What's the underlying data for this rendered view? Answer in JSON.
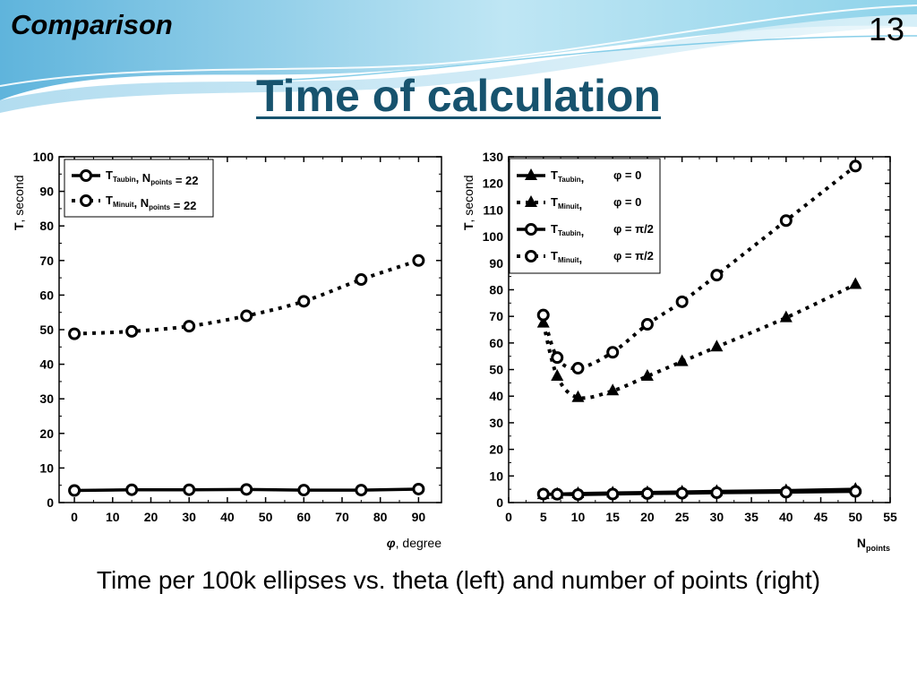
{
  "slide": {
    "section": "Comparison",
    "page_number": "13",
    "title": "Time of calculation",
    "caption": "Time per 100k ellipses vs. theta (left) and number of points (right)"
  },
  "chart_data": [
    {
      "type": "line",
      "ylabel": {
        "main": "T",
        "rest": ", second"
      },
      "xlabel": {
        "main": "φ",
        "rest": ", degree"
      },
      "xlim": [
        -4,
        96
      ],
      "ylim": [
        0,
        100
      ],
      "xticks": [
        0,
        10,
        20,
        30,
        40,
        50,
        60,
        70,
        80,
        90
      ],
      "yticks": [
        0,
        10,
        20,
        30,
        40,
        50,
        60,
        70,
        80,
        90,
        100
      ],
      "legend_position": "top-left",
      "series": [
        {
          "legend": [
            {
              "t": "T",
              "sub": "Taubin"
            },
            {
              "t": ", N"
            },
            {
              "t": "points",
              "sub_only": true
            },
            {
              "t": " = 22"
            }
          ],
          "marker": "circle",
          "line": "solid",
          "x": [
            0,
            15,
            30,
            45,
            60,
            75,
            90
          ],
          "y": [
            3.5,
            3.7,
            3.7,
            3.8,
            3.6,
            3.6,
            3.9
          ]
        },
        {
          "legend": [
            {
              "t": "T",
              "sub": "Minuit"
            },
            {
              "t": ", N"
            },
            {
              "t": "points",
              "sub_only": true
            },
            {
              "t": " = 22"
            }
          ],
          "marker": "circle",
          "line": "dotted",
          "x": [
            0,
            15,
            30,
            45,
            60,
            75,
            90
          ],
          "y": [
            48.8,
            49.5,
            51,
            54,
            58.2,
            64.5,
            70
          ]
        }
      ]
    },
    {
      "type": "line",
      "ylabel": {
        "main": "T",
        "rest": ", second"
      },
      "xlabel": {
        "main": "N",
        "sub": "points"
      },
      "xlim": [
        0,
        55
      ],
      "ylim": [
        0,
        130
      ],
      "xticks": [
        0,
        5,
        10,
        15,
        20,
        25,
        30,
        35,
        40,
        45,
        50,
        55
      ],
      "yticks": [
        0,
        10,
        20,
        30,
        40,
        50,
        60,
        70,
        80,
        90,
        100,
        110,
        120,
        130
      ],
      "legend_position": "top-left",
      "series": [
        {
          "legend": [
            {
              "t": "T",
              "sub": "Taubin"
            },
            {
              "t": ","
            }
          ],
          "phi": "φ = 0",
          "marker": "triangle",
          "line": "solid",
          "x": [
            5,
            7,
            10,
            15,
            20,
            25,
            30,
            40,
            50
          ],
          "y": [
            3,
            3.2,
            3.4,
            3.6,
            3.8,
            4,
            4.2,
            4.5,
            5
          ]
        },
        {
          "legend": [
            {
              "t": "T",
              "sub": "Minuit"
            },
            {
              "t": ","
            }
          ],
          "phi": "φ = 0",
          "marker": "triangle",
          "line": "dotted",
          "x": [
            5,
            7,
            10,
            15,
            20,
            25,
            30,
            40,
            50
          ],
          "y": [
            67.5,
            47.5,
            39.5,
            42,
            47.5,
            53,
            58.5,
            69.5,
            82
          ]
        },
        {
          "legend": [
            {
              "t": "T",
              "sub": "Taubin"
            },
            {
              "t": ","
            }
          ],
          "phi": "φ = π/2",
          "marker": "circle",
          "line": "solid",
          "x": [
            5,
            7,
            10,
            15,
            20,
            25,
            30,
            40,
            50
          ],
          "y": [
            3.2,
            3.1,
            3,
            3.2,
            3.4,
            3.5,
            3.7,
            3.9,
            4.2
          ]
        },
        {
          "legend": [
            {
              "t": "T",
              "sub": "Minuit"
            },
            {
              "t": ","
            }
          ],
          "phi": "φ = π/2",
          "marker": "circle",
          "line": "dotted",
          "x": [
            5,
            7,
            10,
            15,
            20,
            25,
            30,
            40,
            50
          ],
          "y": [
            70.5,
            54.5,
            50.5,
            56.5,
            67,
            75.5,
            85.5,
            106,
            126.5
          ]
        }
      ]
    }
  ]
}
